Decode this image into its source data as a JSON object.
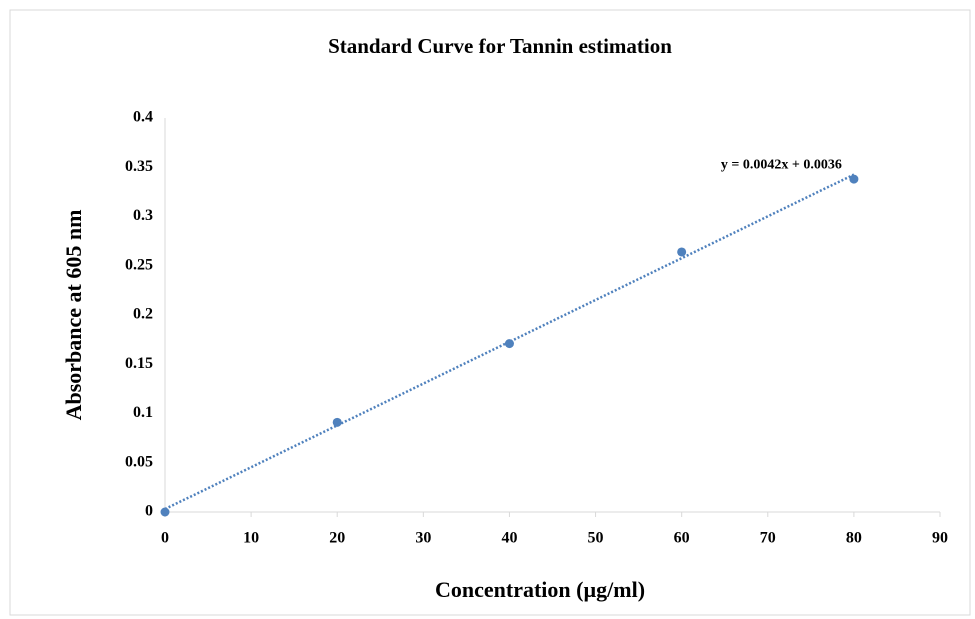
{
  "chart_data": {
    "type": "scatter",
    "title": "Standard Curve for Tannin estimation",
    "x_label": "Concentration (µg/ml)",
    "y_label": "Absorbance at 605 nm",
    "x": [
      0,
      20,
      40,
      60,
      80
    ],
    "values": [
      0,
      0.091,
      0.171,
      0.264,
      0.338
    ],
    "color": "#4f81bd",
    "trendline": true,
    "annotation": "y = 0.0042x + 0.0036",
    "xlim": [
      0,
      90
    ],
    "xticks": [
      0,
      10,
      20,
      30,
      40,
      50,
      60,
      70,
      80,
      90
    ],
    "ylim": [
      0,
      0.4
    ],
    "yticks": [
      0,
      0.05,
      0.1,
      0.15,
      0.2,
      0.25,
      0.3,
      0.35,
      0.4
    ],
    "grid": false
  }
}
